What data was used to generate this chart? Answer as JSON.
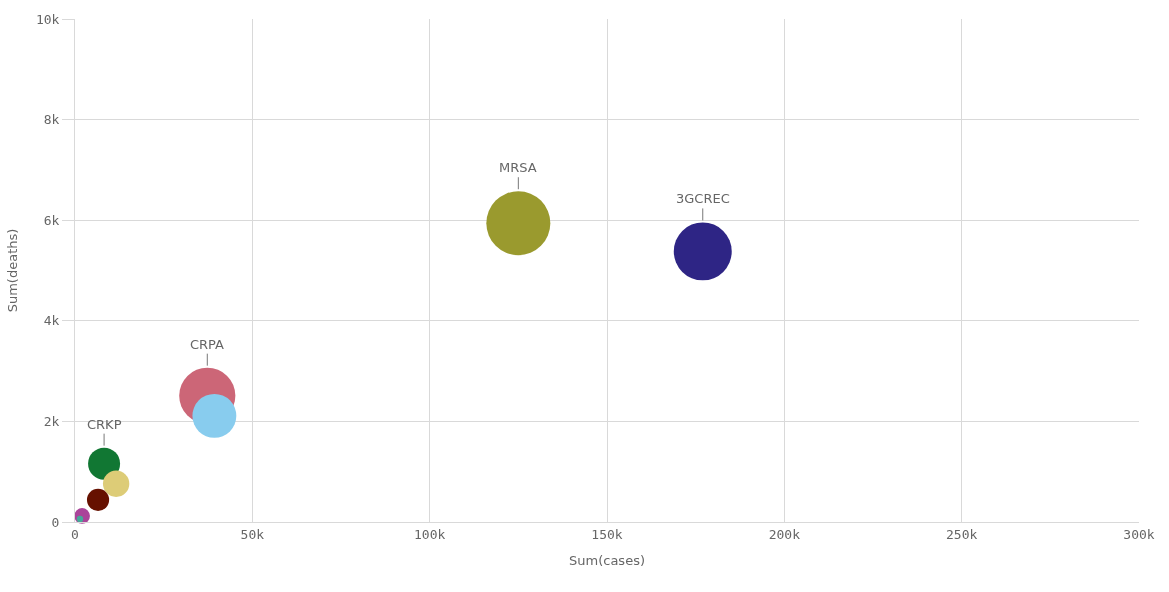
{
  "chart_data": {
    "type": "bubble",
    "xlabel": "Sum(cases)",
    "ylabel": "Sum(deaths)",
    "xlim": [
      0,
      300000
    ],
    "ylim": [
      0,
      10000
    ],
    "xticks": [
      {
        "value": 0,
        "label": "0"
      },
      {
        "value": 50000,
        "label": "50k"
      },
      {
        "value": 100000,
        "label": "100k"
      },
      {
        "value": 150000,
        "label": "150k"
      },
      {
        "value": 200000,
        "label": "200k"
      },
      {
        "value": 250000,
        "label": "250k"
      },
      {
        "value": 300000,
        "label": "300k"
      }
    ],
    "yticks": [
      {
        "value": 0,
        "label": "0"
      },
      {
        "value": 2000,
        "label": "2k"
      },
      {
        "value": 4000,
        "label": "4k"
      },
      {
        "value": 6000,
        "label": "6k"
      },
      {
        "value": 8000,
        "label": "8k"
      },
      {
        "value": 10000,
        "label": "10k"
      }
    ],
    "grid": true,
    "legend": false,
    "series": [
      {
        "name": "MRSA",
        "color": "#9a9a2e",
        "x": [
          125000
        ],
        "values": [
          5940
        ],
        "sizes": [
          1
        ]
      },
      {
        "name": "3GCREC",
        "color": "#2e2585",
        "x": [
          177000
        ],
        "values": [
          5380
        ],
        "sizes": [
          0.82
        ]
      },
      {
        "name": "CRPA",
        "color": "#cc6677",
        "x": [
          37300
        ],
        "values": [
          2510
        ],
        "sizes": [
          0.77
        ]
      },
      {
        "color": "#88ccee",
        "x": [
          39300
        ],
        "values": [
          2110
        ],
        "sizes": [
          0.47
        ]
      },
      {
        "name": "CRKP",
        "color": "#117733",
        "x": [
          8200
        ],
        "values": [
          1160
        ],
        "sizes": [
          0.25
        ]
      },
      {
        "color": "#ddcc77",
        "x": [
          11600
        ],
        "values": [
          760
        ],
        "sizes": [
          0.17
        ]
      },
      {
        "color": "#661100",
        "x": [
          6500
        ],
        "values": [
          440
        ],
        "sizes": [
          0.12
        ]
      },
      {
        "color": "#aa4499",
        "x": [
          2000
        ],
        "values": [
          120
        ],
        "sizes": [
          0.06
        ]
      },
      {
        "color": "#44aa99",
        "x": [
          1400
        ],
        "values": [
          60
        ],
        "sizes": [
          0.01
        ]
      }
    ]
  }
}
